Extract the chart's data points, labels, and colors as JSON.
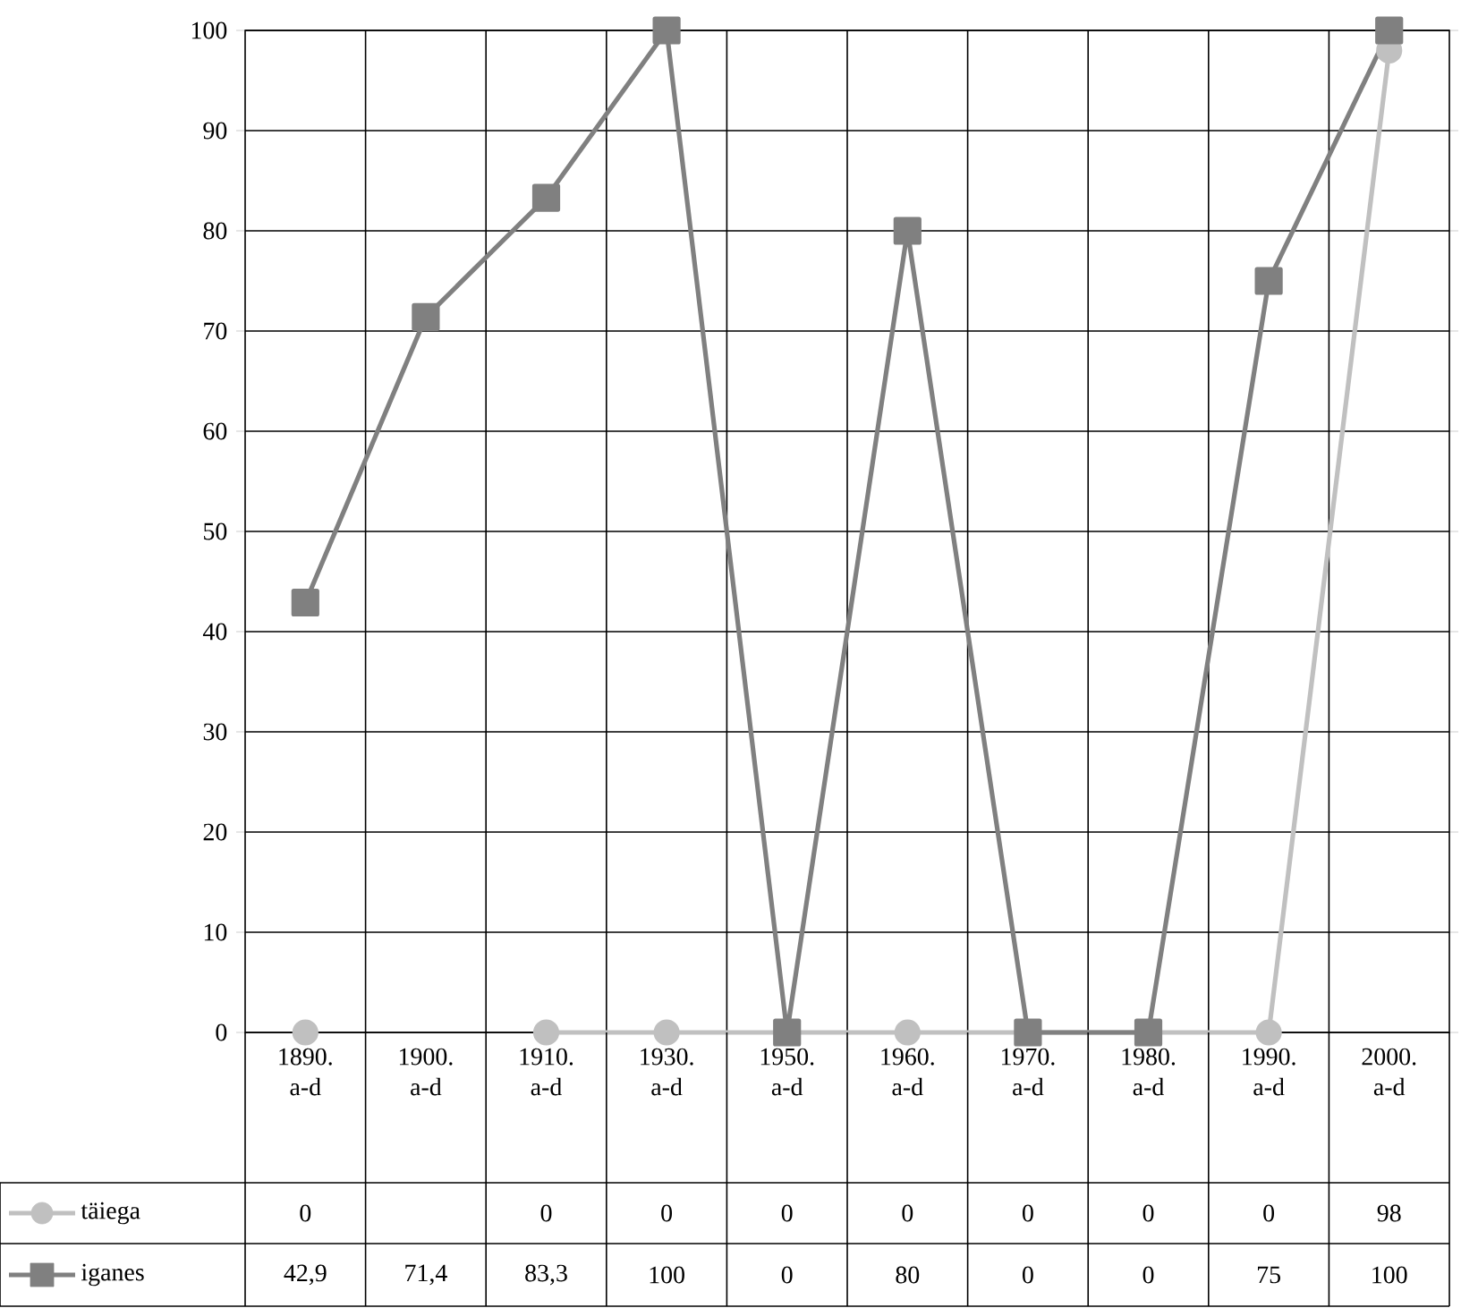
{
  "chart_data": {
    "type": "line",
    "categories": [
      "1890. a-d",
      "1900. a-d",
      "1910. a-d",
      "1930. a-d",
      "1950. a-d",
      "1960. a-d",
      "1970. a-d",
      "1980. a-d",
      "1990. a-d",
      "2000. a-d"
    ],
    "series": [
      {
        "name": "täiega",
        "color": "#c0c0c0",
        "marker": "circle",
        "values": [
          0,
          null,
          0,
          0,
          0,
          0,
          0,
          0,
          0,
          98
        ],
        "value_labels": [
          "0",
          null,
          "0",
          "0",
          "0",
          "0",
          "0",
          "0",
          "0",
          "98"
        ]
      },
      {
        "name": "iganes",
        "color": "#808080",
        "marker": "square",
        "values": [
          42.9,
          71.4,
          83.3,
          100,
          0,
          80,
          0,
          0,
          75,
          100
        ],
        "value_labels": [
          "42,9",
          "71,4",
          "83,3",
          "100",
          "0",
          "80",
          "0",
          "0",
          "75",
          "100"
        ]
      }
    ],
    "ylim": [
      0,
      100
    ],
    "yticks": [
      0,
      10,
      20,
      30,
      40,
      50,
      60,
      70,
      80,
      90,
      100
    ],
    "grid": true,
    "legend": "bottom",
    "line_style": "solid"
  }
}
